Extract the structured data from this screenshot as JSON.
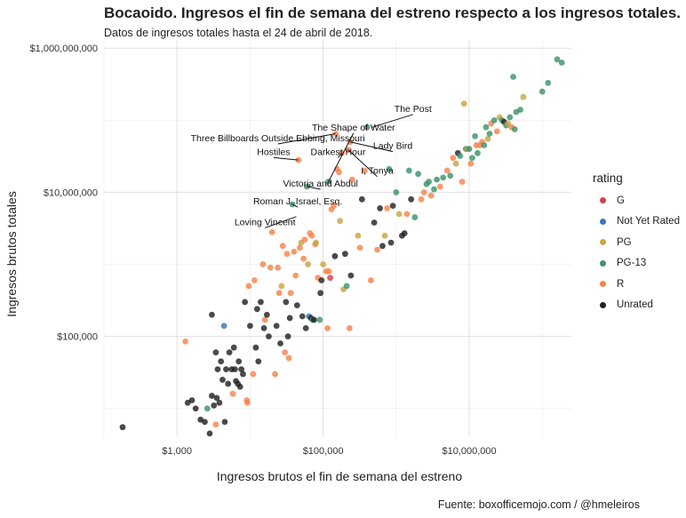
{
  "chart_data": {
    "type": "scatter",
    "title": "Bocaoido. Ingresos el fin de semana del estreno respecto a los ingresos totales.",
    "subtitle": "Datos de ingresos totales hasta el 24 de abril de 2018.",
    "caption": "Fuente: boxofficemojo.com     /     @hmeleiros",
    "xlabel": "Ingresos brutos el fin de semana del estreno",
    "ylabel": "Ingresos brutos totales",
    "x_scale": "log",
    "y_scale": "log",
    "xlim": [
      100,
      250000000
    ],
    "ylim": [
      4000,
      1300000000
    ],
    "x_ticks": [
      {
        "value": 1000,
        "label": "$1,000"
      },
      {
        "value": 100000,
        "label": "$100,000"
      },
      {
        "value": 10000000,
        "label": "$10,000,000"
      }
    ],
    "y_ticks": [
      {
        "value": 100000,
        "label": "$100,000"
      },
      {
        "value": 10000000,
        "label": "$10,000,000"
      },
      {
        "value": 1000000000,
        "label": "$1,000,000,000"
      }
    ],
    "grid": true,
    "legend_title": "rating",
    "legend_position": "right",
    "ratings": [
      "G",
      "Not Yet Rated",
      "PG",
      "PG-13",
      "R",
      "Unrated"
    ],
    "colors": {
      "G": "#d6404e",
      "Not Yet Rated": "#3a78b0",
      "PG": "#c8a545",
      "PG-13": "#3e9469",
      "R": "#f5844c",
      "Unrated": "#222222"
    },
    "points": [
      {
        "x": 180,
        "y": 5500,
        "rating": "Unrated"
      },
      {
        "x": 1300,
        "y": 85000,
        "rating": "R"
      },
      {
        "x": 1400,
        "y": 12000,
        "rating": "Unrated"
      },
      {
        "x": 1600,
        "y": 13000,
        "rating": "Unrated"
      },
      {
        "x": 1800,
        "y": 10000,
        "rating": "Unrated"
      },
      {
        "x": 2100,
        "y": 7000,
        "rating": "Unrated"
      },
      {
        "x": 2400,
        "y": 6500,
        "rating": "Unrated"
      },
      {
        "x": 2600,
        "y": 10000,
        "rating": "PG-13"
      },
      {
        "x": 2800,
        "y": 4500,
        "rating": "Unrated"
      },
      {
        "x": 3000,
        "y": 15000,
        "rating": "Unrated"
      },
      {
        "x": 3000,
        "y": 200000,
        "rating": "Unrated"
      },
      {
        "x": 3200,
        "y": 11000,
        "rating": "Unrated"
      },
      {
        "x": 3400,
        "y": 6000,
        "rating": "R"
      },
      {
        "x": 3400,
        "y": 60000,
        "rating": "Unrated"
      },
      {
        "x": 3500,
        "y": 14000,
        "rating": "Unrated"
      },
      {
        "x": 3600,
        "y": 35000,
        "rating": "Unrated"
      },
      {
        "x": 3800,
        "y": 12000,
        "rating": "Unrated"
      },
      {
        "x": 4000,
        "y": 45000,
        "rating": "Unrated"
      },
      {
        "x": 4200,
        "y": 25000,
        "rating": "Unrated"
      },
      {
        "x": 4400,
        "y": 140000,
        "rating": "Not Yet Rated"
      },
      {
        "x": 4500,
        "y": 6500,
        "rating": "Unrated"
      },
      {
        "x": 4700,
        "y": 35000,
        "rating": "Unrated"
      },
      {
        "x": 5000,
        "y": 22000,
        "rating": "Unrated"
      },
      {
        "x": 5200,
        "y": 60000,
        "rating": "Unrated"
      },
      {
        "x": 5600,
        "y": 35000,
        "rating": "Unrated"
      },
      {
        "x": 5800,
        "y": 16000,
        "rating": "R"
      },
      {
        "x": 6000,
        "y": 70000,
        "rating": "Unrated"
      },
      {
        "x": 6200,
        "y": 35000,
        "rating": "Unrated"
      },
      {
        "x": 6400,
        "y": 24000,
        "rating": "Unrated"
      },
      {
        "x": 6800,
        "y": 22000,
        "rating": "Unrated"
      },
      {
        "x": 7000,
        "y": 45000,
        "rating": "Unrated"
      },
      {
        "x": 7300,
        "y": 20000,
        "rating": "Unrated"
      },
      {
        "x": 7600,
        "y": 35000,
        "rating": "Unrated"
      },
      {
        "x": 8000,
        "y": 30000,
        "rating": "Unrated"
      },
      {
        "x": 8500,
        "y": 300000,
        "rating": "Unrated"
      },
      {
        "x": 9000,
        "y": 13000,
        "rating": "R"
      },
      {
        "x": 9200,
        "y": 12000,
        "rating": "R"
      },
      {
        "x": 9600,
        "y": 500000,
        "rating": "R"
      },
      {
        "x": 10000,
        "y": 140000,
        "rating": "Unrated"
      },
      {
        "x": 11000,
        "y": 30000,
        "rating": "R"
      },
      {
        "x": 11500,
        "y": 600000,
        "rating": "R"
      },
      {
        "x": 12000,
        "y": 70000,
        "rating": "Unrated"
      },
      {
        "x": 12500,
        "y": 240000,
        "rating": "Unrated"
      },
      {
        "x": 13000,
        "y": 45000,
        "rating": "Unrated"
      },
      {
        "x": 14000,
        "y": 300000,
        "rating": "Unrated"
      },
      {
        "x": 15000,
        "y": 1000000,
        "rating": "R"
      },
      {
        "x": 15500,
        "y": 130000,
        "rating": "Unrated"
      },
      {
        "x": 16000,
        "y": 170000,
        "rating": "R"
      },
      {
        "x": 17000,
        "y": 200000,
        "rating": "Unrated"
      },
      {
        "x": 18000,
        "y": 100000,
        "rating": "Unrated"
      },
      {
        "x": 19000,
        "y": 900000,
        "rating": "R"
      },
      {
        "x": 20000,
        "y": 2800000,
        "rating": "R"
      },
      {
        "x": 22000,
        "y": 30000,
        "rating": "R"
      },
      {
        "x": 23000,
        "y": 140000,
        "rating": "Unrated"
      },
      {
        "x": 24000,
        "y": 900000,
        "rating": "R"
      },
      {
        "x": 25000,
        "y": 400000,
        "rating": "R"
      },
      {
        "x": 26000,
        "y": 80000,
        "rating": "Unrated"
      },
      {
        "x": 27000,
        "y": 500000,
        "rating": "PG"
      },
      {
        "x": 28000,
        "y": 1800000,
        "rating": "R"
      },
      {
        "x": 30000,
        "y": 60000,
        "rating": "R"
      },
      {
        "x": 31000,
        "y": 300000,
        "rating": "Unrated"
      },
      {
        "x": 32000,
        "y": 1400000,
        "rating": "R"
      },
      {
        "x": 33000,
        "y": 100000,
        "rating": "Unrated"
      },
      {
        "x": 34000,
        "y": 50000,
        "rating": "R"
      },
      {
        "x": 35000,
        "y": 180000,
        "rating": "Unrated"
      },
      {
        "x": 36000,
        "y": 400000,
        "rating": "R"
      },
      {
        "x": 38000,
        "y": 6800000,
        "rating": "PG-13"
      },
      {
        "x": 40000,
        "y": 1500000,
        "rating": "R"
      },
      {
        "x": 42000,
        "y": 700000,
        "rating": "R"
      },
      {
        "x": 44000,
        "y": 270000,
        "rating": "Unrated"
      },
      {
        "x": 46000,
        "y": 28000000,
        "rating": "R"
      },
      {
        "x": 48000,
        "y": 1700000,
        "rating": "R"
      },
      {
        "x": 50000,
        "y": 2000000,
        "rating": "PG"
      },
      {
        "x": 52000,
        "y": 190000,
        "rating": "Unrated"
      },
      {
        "x": 54000,
        "y": 1200000,
        "rating": "R"
      },
      {
        "x": 56000,
        "y": 2200000,
        "rating": "R"
      },
      {
        "x": 58000,
        "y": 130000,
        "rating": "Unrated"
      },
      {
        "x": 60000,
        "y": 12000000,
        "rating": "PG-13"
      },
      {
        "x": 62000,
        "y": 1000000,
        "rating": "PG"
      },
      {
        "x": 64000,
        "y": 190000,
        "rating": "Not Yet Rated"
      },
      {
        "x": 66000,
        "y": 2700000,
        "rating": "R"
      },
      {
        "x": 68000,
        "y": 180000,
        "rating": "Unrated"
      },
      {
        "x": 70000,
        "y": 2500000,
        "rating": "R"
      },
      {
        "x": 72000,
        "y": 170000,
        "rating": "PG-13"
      },
      {
        "x": 75000,
        "y": 170000,
        "rating": "Unrated"
      },
      {
        "x": 78000,
        "y": 1900000,
        "rating": "R"
      },
      {
        "x": 80000,
        "y": 2000000,
        "rating": "PG"
      },
      {
        "x": 85000,
        "y": 650000,
        "rating": "R"
      },
      {
        "x": 90000,
        "y": 170000,
        "rating": "PG-13"
      },
      {
        "x": 92000,
        "y": 400000,
        "rating": "Unrated"
      },
      {
        "x": 95000,
        "y": 600000,
        "rating": "Unrated"
      },
      {
        "x": 100000,
        "y": 1000000,
        "rating": "PG"
      },
      {
        "x": 110000,
        "y": 800000,
        "rating": "R"
      },
      {
        "x": 115000,
        "y": 130000,
        "rating": "R"
      },
      {
        "x": 118000,
        "y": 14000000,
        "rating": "PG-13"
      },
      {
        "x": 120000,
        "y": 800000,
        "rating": "R"
      },
      {
        "x": 125000,
        "y": 650000,
        "rating": "G"
      },
      {
        "x": 130000,
        "y": 5800000,
        "rating": "R"
      },
      {
        "x": 140000,
        "y": 6500000,
        "rating": "R"
      },
      {
        "x": 145000,
        "y": 1300000,
        "rating": "Unrated"
      },
      {
        "x": 148000,
        "y": 65000000,
        "rating": "R"
      },
      {
        "x": 155000,
        "y": 21000000,
        "rating": "R"
      },
      {
        "x": 165000,
        "y": 19000000,
        "rating": "R"
      },
      {
        "x": 170000,
        "y": 4000000,
        "rating": "PG"
      },
      {
        "x": 180000,
        "y": 35000000,
        "rating": "R"
      },
      {
        "x": 190000,
        "y": 450000,
        "rating": "PG"
      },
      {
        "x": 200000,
        "y": 1400000,
        "rating": "Unrated"
      },
      {
        "x": 210000,
        "y": 500000,
        "rating": "PG-13"
      },
      {
        "x": 220000,
        "y": 39000000,
        "rating": "R"
      },
      {
        "x": 230000,
        "y": 130000,
        "rating": "R"
      },
      {
        "x": 235000,
        "y": 50000000,
        "rating": "R"
      },
      {
        "x": 240000,
        "y": 700000,
        "rating": "Unrated"
      },
      {
        "x": 250000,
        "y": 15000000,
        "rating": "R"
      },
      {
        "x": 300000,
        "y": 2500000,
        "rating": "PG"
      },
      {
        "x": 320000,
        "y": 1700000,
        "rating": "R"
      },
      {
        "x": 340000,
        "y": 8000000,
        "rating": "Unrated"
      },
      {
        "x": 370000,
        "y": 20000000,
        "rating": "R"
      },
      {
        "x": 400000,
        "y": 80000000,
        "rating": "PG-13"
      },
      {
        "x": 450000,
        "y": 600000,
        "rating": "R"
      },
      {
        "x": 500000,
        "y": 3800000,
        "rating": "Unrated"
      },
      {
        "x": 550000,
        "y": 1600000,
        "rating": "R"
      },
      {
        "x": 600000,
        "y": 6000000,
        "rating": "Unrated"
      },
      {
        "x": 650000,
        "y": 1800000,
        "rating": "Unrated"
      },
      {
        "x": 700000,
        "y": 2500000,
        "rating": "PG"
      },
      {
        "x": 750000,
        "y": 6000000,
        "rating": "R"
      },
      {
        "x": 800000,
        "y": 21000000,
        "rating": "PG-13"
      },
      {
        "x": 850000,
        "y": 2000000,
        "rating": "Unrated"
      },
      {
        "x": 900000,
        "y": 6500000,
        "rating": "Unrated"
      },
      {
        "x": 1000000,
        "y": 10000000,
        "rating": "PG-13"
      },
      {
        "x": 1100000,
        "y": 5000000,
        "rating": "PG"
      },
      {
        "x": 1200000,
        "y": 2500000,
        "rating": "Unrated"
      },
      {
        "x": 1300000,
        "y": 2700000,
        "rating": "Unrated"
      },
      {
        "x": 1400000,
        "y": 5000000,
        "rating": "R"
      },
      {
        "x": 1500000,
        "y": 20000000,
        "rating": "PG-13"
      },
      {
        "x": 1600000,
        "y": 8000000,
        "rating": "Unrated"
      },
      {
        "x": 1800000,
        "y": 4500000,
        "rating": "PG-13"
      },
      {
        "x": 2000000,
        "y": 18000000,
        "rating": "PG-13"
      },
      {
        "x": 2200000,
        "y": 8000000,
        "rating": "R"
      },
      {
        "x": 2400000,
        "y": 10000000,
        "rating": "R"
      },
      {
        "x": 2600000,
        "y": 13000000,
        "rating": "PG-13"
      },
      {
        "x": 2800000,
        "y": 14000000,
        "rating": "PG-13"
      },
      {
        "x": 3000000,
        "y": 9000000,
        "rating": "R"
      },
      {
        "x": 3300000,
        "y": 11000000,
        "rating": "PG-13"
      },
      {
        "x": 3600000,
        "y": 15000000,
        "rating": "PG-13"
      },
      {
        "x": 4000000,
        "y": 12000000,
        "rating": "R"
      },
      {
        "x": 4400000,
        "y": 16000000,
        "rating": "PG-13"
      },
      {
        "x": 5000000,
        "y": 20000000,
        "rating": "R"
      },
      {
        "x": 5500000,
        "y": 17000000,
        "rating": "PG-13"
      },
      {
        "x": 6000000,
        "y": 30000000,
        "rating": "R"
      },
      {
        "x": 6600000,
        "y": 25000000,
        "rating": "PG"
      },
      {
        "x": 7000000,
        "y": 35000000,
        "rating": "Unrated"
      },
      {
        "x": 7500000,
        "y": 32000000,
        "rating": "PG-13"
      },
      {
        "x": 8000000,
        "y": 14000000,
        "rating": "R"
      },
      {
        "x": 8500000,
        "y": 170000000,
        "rating": "PG"
      },
      {
        "x": 9000000,
        "y": 40000000,
        "rating": "PG-13"
      },
      {
        "x": 9500000,
        "y": 40000000,
        "rating": "PG"
      },
      {
        "x": 10000000,
        "y": 40000000,
        "rating": "PG-13"
      },
      {
        "x": 10500000,
        "y": 25000000,
        "rating": "R"
      },
      {
        "x": 11000000,
        "y": 30000000,
        "rating": "PG-13"
      },
      {
        "x": 12000000,
        "y": 60000000,
        "rating": "PG-13"
      },
      {
        "x": 12500000,
        "y": 45000000,
        "rating": "R"
      },
      {
        "x": 13000000,
        "y": 35000000,
        "rating": "PG-13"
      },
      {
        "x": 14000000,
        "y": 45000000,
        "rating": "R"
      },
      {
        "x": 15000000,
        "y": 50000000,
        "rating": "R"
      },
      {
        "x": 16000000,
        "y": 45000000,
        "rating": "PG-13"
      },
      {
        "x": 17000000,
        "y": 80000000,
        "rating": "PG-13"
      },
      {
        "x": 18000000,
        "y": 55000000,
        "rating": "PG"
      },
      {
        "x": 19000000,
        "y": 65000000,
        "rating": "PG-13"
      },
      {
        "x": 20000000,
        "y": 90000000,
        "rating": "R"
      },
      {
        "x": 22000000,
        "y": 100000000,
        "rating": "PG-13"
      },
      {
        "x": 24000000,
        "y": 70000000,
        "rating": "R"
      },
      {
        "x": 26000000,
        "y": 110000000,
        "rating": "PG"
      },
      {
        "x": 28000000,
        "y": 100000000,
        "rating": "PG-13"
      },
      {
        "x": 30000000,
        "y": 95000000,
        "rating": "Unrated"
      },
      {
        "x": 32000000,
        "y": 85000000,
        "rating": "PG-13"
      },
      {
        "x": 34000000,
        "y": 90000000,
        "rating": "PG"
      },
      {
        "x": 36000000,
        "y": 110000000,
        "rating": "PG-13"
      },
      {
        "x": 38000000,
        "y": 80000000,
        "rating": "R"
      },
      {
        "x": 40000000,
        "y": 400000000,
        "rating": "PG-13"
      },
      {
        "x": 42000000,
        "y": 75000000,
        "rating": "PG-13"
      },
      {
        "x": 44000000,
        "y": 130000000,
        "rating": "PG-13"
      },
      {
        "x": 50000000,
        "y": 140000000,
        "rating": "PG-13"
      },
      {
        "x": 55000000,
        "y": 210000000,
        "rating": "PG"
      },
      {
        "x": 100000000,
        "y": 250000000,
        "rating": "PG-13"
      },
      {
        "x": 120000000,
        "y": 330000000,
        "rating": "PG-13"
      },
      {
        "x": 160000000,
        "y": 700000000,
        "rating": "PG-13"
      },
      {
        "x": 185000000,
        "y": 630000000,
        "rating": "PG-13"
      }
    ],
    "annotations": [
      {
        "label": "The Post",
        "x": 470000,
        "y": 80000000,
        "lx": 1700000,
        "ly": 131000000,
        "anchor": "middle"
      },
      {
        "label": "The Shape of Water",
        "x": 118000,
        "y": 14000000,
        "lx": 260000,
        "ly": 72000000,
        "anchor": "middle"
      },
      {
        "label": "Three Billboards Outside Ebbing, Missouri",
        "x": 148000,
        "y": 65000000,
        "lx": 24000,
        "ly": 51000000,
        "anchor": "middle"
      },
      {
        "label": "Lady Bird",
        "x": 235000,
        "y": 50000000,
        "lx": 900000,
        "ly": 40000000,
        "anchor": "middle"
      },
      {
        "label": "Darkest Hour",
        "x": 180000,
        "y": 35000000,
        "lx": 160000,
        "ly": 33000000,
        "anchor": "middle"
      },
      {
        "label": "Hostiles",
        "x": 46000,
        "y": 28000000,
        "lx": 21000,
        "ly": 33000000,
        "anchor": "middle"
      },
      {
        "label": "I, Tonya",
        "x": 220000,
        "y": 39000000,
        "lx": 550000,
        "ly": 18000000,
        "anchor": "middle"
      },
      {
        "label": "Victoria and Abdul",
        "x": 60000,
        "y": 12000000,
        "lx": 92000,
        "ly": 12000000,
        "anchor": "middle"
      },
      {
        "label": "Roman J. Israel, Esq.",
        "x": 38000,
        "y": 6800000,
        "lx": 45000,
        "ly": 6800000,
        "anchor": "middle"
      },
      {
        "label": "Loving Vincent",
        "x": 43000,
        "y": 4600000,
        "lx": 16000,
        "ly": 3500000,
        "anchor": "middle"
      }
    ]
  }
}
